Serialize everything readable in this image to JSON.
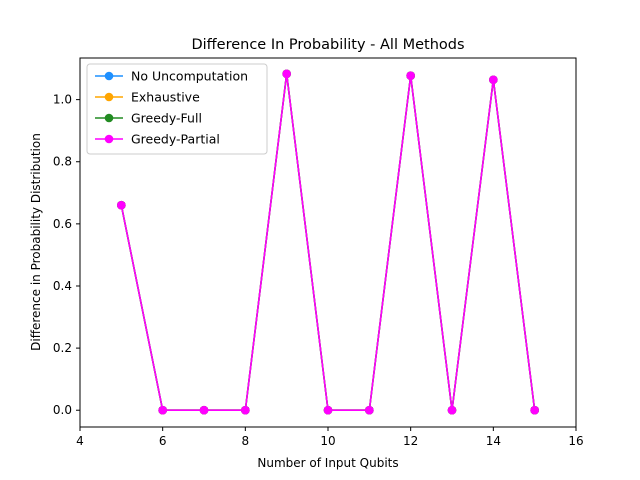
{
  "chart_data": {
    "type": "line",
    "title": "Difference In Probability - All Methods",
    "xlabel": "Number of Input Qubits",
    "ylabel": "Difference in Probability Distribution",
    "xlim": [
      4,
      16
    ],
    "ylim": [
      -0.054,
      1.134
    ],
    "xticks": [
      4,
      6,
      8,
      10,
      12,
      14,
      16
    ],
    "yticks": [
      0.0,
      0.2,
      0.4,
      0.6,
      0.8,
      1.0
    ],
    "ytick_labels": [
      "0.0",
      "0.2",
      "0.4",
      "0.6",
      "0.8",
      "1.0"
    ],
    "grid": false,
    "legend_position": "top-left",
    "x": [
      5,
      6,
      7,
      8,
      9,
      10,
      11,
      12,
      13,
      14,
      15
    ],
    "series": [
      {
        "name": "No Uncomputation",
        "color": "#1e90ff",
        "values": [
          0.66,
          0.0,
          0.0,
          0.0,
          1.083,
          0.0,
          0.0,
          1.077,
          0.0,
          1.064,
          0.0
        ]
      },
      {
        "name": "Exhaustive",
        "color": "#ffa500",
        "values": [
          0.66,
          0.0,
          0.0,
          0.0,
          1.083,
          0.0,
          0.0,
          1.077,
          0.0,
          1.064,
          0.0
        ]
      },
      {
        "name": "Greedy-Full",
        "color": "#228b22",
        "values": [
          0.66,
          0.0,
          0.0,
          0.0,
          1.083,
          0.0,
          0.0,
          1.077,
          0.0,
          1.064,
          0.0
        ]
      },
      {
        "name": "Greedy-Partial",
        "color": "#ff00ff",
        "values": [
          0.66,
          0.0,
          0.0,
          0.0,
          1.083,
          0.0,
          0.0,
          1.077,
          0.0,
          1.064,
          0.0
        ]
      }
    ]
  }
}
